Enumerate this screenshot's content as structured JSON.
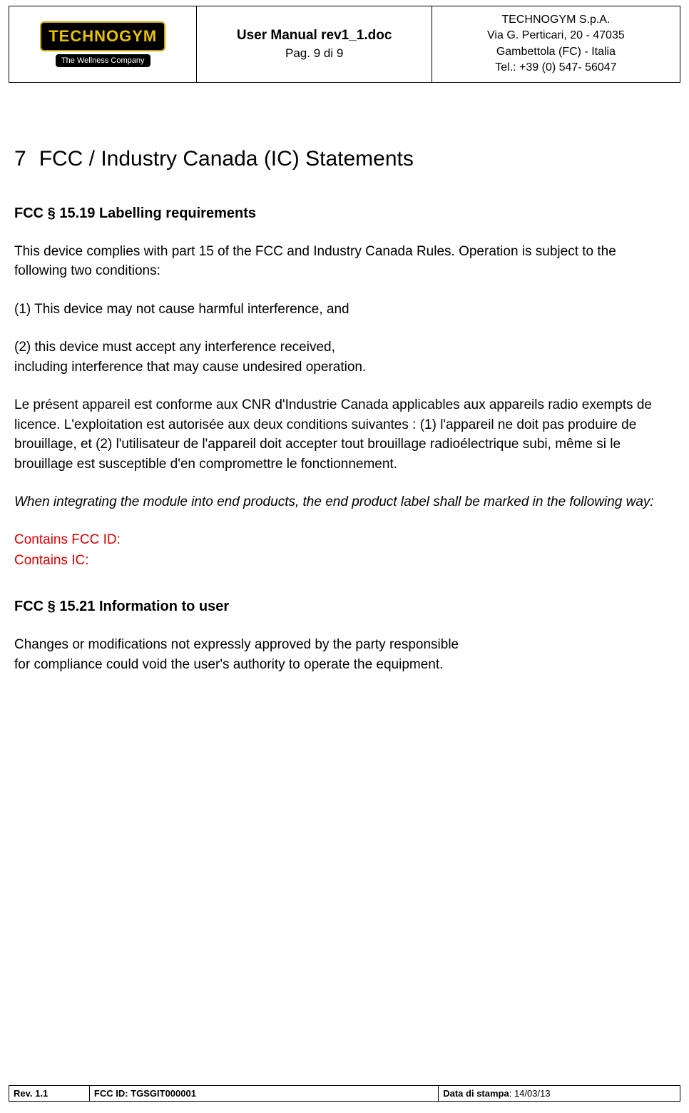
{
  "header": {
    "logo": {
      "brand": "TECHNOGYM",
      "tagline": "The Wellness Company"
    },
    "doc": {
      "title": "User Manual rev1_1.doc",
      "page": "Pag. 9 di 9"
    },
    "company": {
      "line1": "TECHNOGYM S.p.A.",
      "line2": "Via G. Perticari, 20 - 47035",
      "line3": "Gambettola (FC) - Italia",
      "line4": "Tel.: +39 (0) 547- 56047"
    }
  },
  "section": {
    "number": "7",
    "title": "FCC / Industry Canada (IC) Statements"
  },
  "fcc1519": {
    "heading": "FCC § 15.19 Labelling requirements",
    "p1": "This device complies with part 15 of the FCC and Industry Canada Rules. Operation is subject to the following two conditions:",
    "p2": "(1) This device may not cause harmful interference, and",
    "p3a": "(2) this device must accept any interference received,",
    "p3b": "including interference that may cause undesired operation.",
    "p4": "Le présent appareil est conforme aux CNR d'Industrie Canada applicables aux appareils radio exempts de licence. L'exploitation est autorisée aux deux conditions suivantes : (1) l'appareil ne doit pas produire de brouillage, et (2) l'utilisateur de l'appareil doit accepter tout brouillage radioélectrique subi, même si le brouillage est susceptible d'en compromettre le fonctionnement.",
    "p5": "When integrating the module into end products, the end product label shall be marked in the following way:",
    "red1": "Contains FCC ID:",
    "red2": "Contains IC:"
  },
  "fcc1521": {
    "heading": "FCC § 15.21 Information to user",
    "p1a": "Changes or modifications not expressly approved by the party responsible",
    "p1b": "for compliance could void the user's authority to operate the equipment."
  },
  "footer": {
    "rev_label": "Rev. 1.1",
    "fcc_label": "FCC ID: ",
    "fcc_value": "TGSGIT000001",
    "date_label": "Data di stampa",
    "date_value": ": 14/03/13"
  },
  "colors": {
    "text": "#000000",
    "background": "#ffffff",
    "red": "#d00000",
    "logo_bg": "#000000",
    "logo_text": "#e6c200",
    "border": "#000000"
  }
}
